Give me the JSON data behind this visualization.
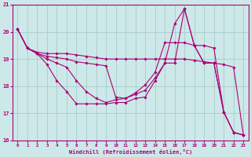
{
  "xlabel": "Windchill (Refroidissement éolien,°C)",
  "xlim": [
    -0.5,
    23.5
  ],
  "ylim": [
    16,
    21
  ],
  "yticks": [
    16,
    17,
    18,
    19,
    20,
    21
  ],
  "xticks": [
    0,
    1,
    2,
    3,
    4,
    5,
    6,
    7,
    8,
    9,
    10,
    11,
    12,
    13,
    14,
    15,
    16,
    17,
    18,
    19,
    20,
    21,
    22,
    23
  ],
  "bg_color": "#cde8e8",
  "grid_color": "#a8cccc",
  "line_color": "#aa0077",
  "lines": [
    {
      "x": [
        0,
        1,
        2,
        3,
        4,
        5,
        6,
        7,
        8,
        9,
        10,
        11,
        12,
        13,
        14,
        15,
        16,
        17,
        18,
        19,
        20,
        21,
        22,
        23
      ],
      "y": [
        20.1,
        19.4,
        19.2,
        18.8,
        18.2,
        17.8,
        17.35,
        17.35,
        17.35,
        17.35,
        17.4,
        17.4,
        17.55,
        17.6,
        18.2,
        18.85,
        20.3,
        20.85,
        19.5,
        18.85,
        18.85,
        17.05,
        16.3,
        16.2
      ]
    },
    {
      "x": [
        0,
        1,
        2,
        3,
        4,
        5,
        6,
        7,
        8,
        9,
        10,
        11,
        12,
        13,
        14,
        15,
        16,
        17,
        18,
        19,
        20,
        21,
        22,
        23
      ],
      "y": [
        20.1,
        19.4,
        19.25,
        19.2,
        19.2,
        19.2,
        19.15,
        19.1,
        19.05,
        19.0,
        19.0,
        19.0,
        19.0,
        19.0,
        19.0,
        19.0,
        19.0,
        19.0,
        18.95,
        18.9,
        18.85,
        18.8,
        18.7,
        16.2
      ]
    },
    {
      "x": [
        0,
        1,
        2,
        3,
        4,
        5,
        6,
        7,
        8,
        9,
        10,
        11,
        12,
        13,
        14,
        15,
        16,
        17,
        18,
        19,
        20,
        21,
        22,
        23
      ],
      "y": [
        20.1,
        19.4,
        19.2,
        19.0,
        18.85,
        18.7,
        18.2,
        17.8,
        17.55,
        17.4,
        17.5,
        17.55,
        17.7,
        17.85,
        18.3,
        18.85,
        18.85,
        20.85,
        19.5,
        19.5,
        19.4,
        17.05,
        16.3,
        16.2
      ]
    },
    {
      "x": [
        0,
        1,
        2,
        3,
        4,
        5,
        6,
        7,
        8,
        9,
        10,
        11,
        12,
        13,
        14,
        15,
        16,
        17,
        18,
        19,
        20,
        21,
        22,
        23
      ],
      "y": [
        20.1,
        19.4,
        19.2,
        19.1,
        19.05,
        19.0,
        18.9,
        18.85,
        18.8,
        18.75,
        17.6,
        17.55,
        17.75,
        18.05,
        18.5,
        19.6,
        19.6,
        19.6,
        19.5,
        18.85,
        18.85,
        17.05,
        16.3,
        16.2
      ]
    }
  ]
}
